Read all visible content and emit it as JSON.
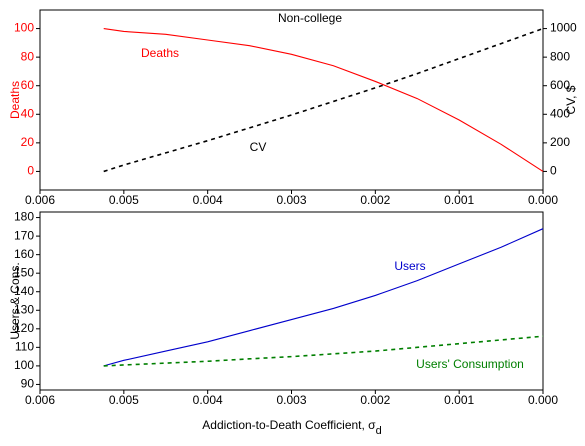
{
  "chart_data": [
    {
      "type": "line",
      "title": "Non-college",
      "ylabel": "Deaths",
      "y2label": "CV, $",
      "x": [
        0.00524,
        0.005,
        0.0045,
        0.004,
        0.0035,
        0.003,
        0.0025,
        0.002,
        0.0015,
        0.001,
        0.0005,
        0
      ],
      "xlim": [
        0.006,
        0
      ],
      "xticks": [
        0.006,
        0.005,
        0.004,
        0.003,
        0.002,
        0.001,
        {
          "value": 0,
          "label": "0.000"
        }
      ],
      "ylim": [
        -13,
        113
      ],
      "yticks": [
        0,
        20,
        40,
        60,
        80,
        100
      ],
      "y2lim": [
        -130,
        1130
      ],
      "y2ticks": [
        0,
        200,
        400,
        600,
        800,
        1000
      ],
      "series": [
        {
          "name": "Deaths",
          "color": "#ff0000",
          "dash": false,
          "values": [
            100,
            98,
            96,
            92,
            88,
            82,
            74,
            63,
            51,
            36,
            19,
            0
          ]
        },
        {
          "name": "CV",
          "color": "#000000",
          "dash": true,
          "axis": "y2",
          "values": [
            0,
            45,
            130,
            215,
            305,
            395,
            490,
            585,
            685,
            790,
            895,
            1000
          ]
        }
      ]
    },
    {
      "type": "line",
      "ylabel": "Users & Cons.",
      "xlabel": "Addiction-to-Death Coefficient, σ",
      "xlabel_sub": "d",
      "x": [
        0.00524,
        0.005,
        0.0045,
        0.004,
        0.0035,
        0.003,
        0.0025,
        0.002,
        0.0015,
        0.001,
        0.0005,
        0
      ],
      "xlim": [
        0.006,
        0
      ],
      "xticks": [
        0.006,
        0.005,
        0.004,
        0.003,
        0.002,
        0.001,
        {
          "value": 0,
          "label": "0.000"
        }
      ],
      "ylim": [
        87,
        183
      ],
      "yticks": [
        90,
        100,
        110,
        120,
        130,
        140,
        150,
        160,
        170,
        180
      ],
      "series": [
        {
          "name": "Users",
          "color": "#0000cc",
          "dash": false,
          "values": [
            100,
            103,
            108,
            113,
            119,
            125,
            131,
            138,
            146,
            155,
            164,
            174
          ]
        },
        {
          "name": "Users' Consumption",
          "color": "#007f00",
          "dash": true,
          "values": [
            100,
            100.5,
            101.5,
            102.5,
            103.8,
            105,
            106.5,
            108,
            110,
            112,
            114,
            116
          ]
        }
      ]
    }
  ]
}
